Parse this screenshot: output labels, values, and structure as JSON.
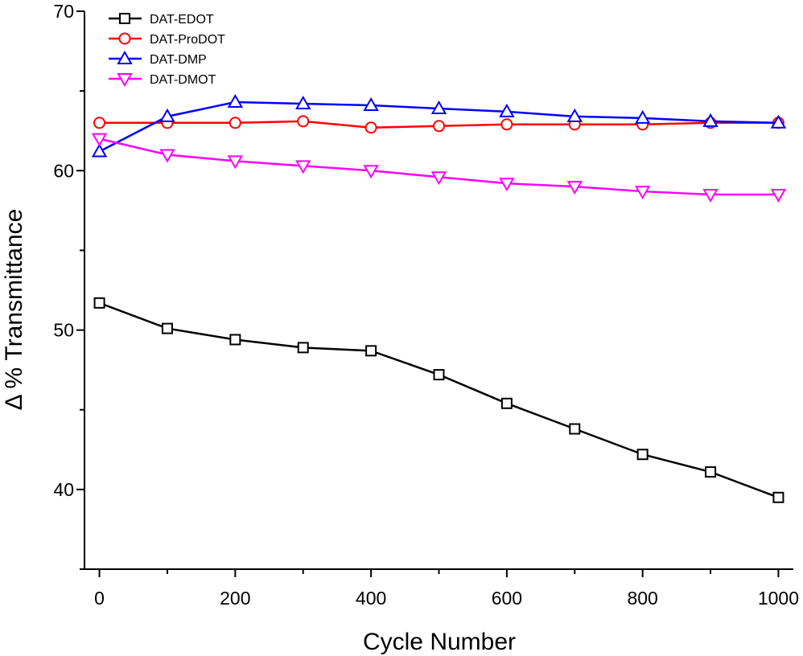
{
  "chart_data": {
    "type": "line",
    "title": "",
    "xlabel": "Cycle Number",
    "ylabel": "Δ % Transmittance",
    "xlim": [
      -22,
      1022
    ],
    "ylim": [
      35,
      70
    ],
    "xticks": [
      0,
      200,
      400,
      600,
      800,
      1000
    ],
    "yticks": [
      40,
      50,
      60,
      70
    ],
    "x": [
      0,
      100,
      200,
      300,
      400,
      500,
      600,
      700,
      800,
      900,
      1000
    ],
    "grid": false,
    "legend_position": "top-left",
    "series": [
      {
        "name": "DAT-EDOT",
        "color": "#000000",
        "marker": "square",
        "values": [
          51.7,
          50.1,
          49.4,
          48.9,
          48.7,
          47.2,
          45.4,
          43.8,
          42.2,
          41.1,
          39.5
        ]
      },
      {
        "name": "DAT-ProDOT",
        "color": "#ff0000",
        "marker": "circle",
        "values": [
          63.0,
          63.0,
          63.0,
          63.1,
          62.7,
          62.8,
          62.9,
          62.9,
          62.9,
          63.0,
          63.0
        ]
      },
      {
        "name": "DAT-DMP",
        "color": "#0000ff",
        "marker": "triangle-up",
        "values": [
          61.2,
          63.4,
          64.3,
          64.2,
          64.1,
          63.9,
          63.7,
          63.4,
          63.3,
          63.1,
          63.0
        ]
      },
      {
        "name": "DAT-DMOT",
        "color": "#ff00ff",
        "marker": "triangle-down",
        "values": [
          62.0,
          61.0,
          60.6,
          60.3,
          60.0,
          59.6,
          59.2,
          59.0,
          58.7,
          58.5,
          58.5
        ]
      }
    ]
  }
}
